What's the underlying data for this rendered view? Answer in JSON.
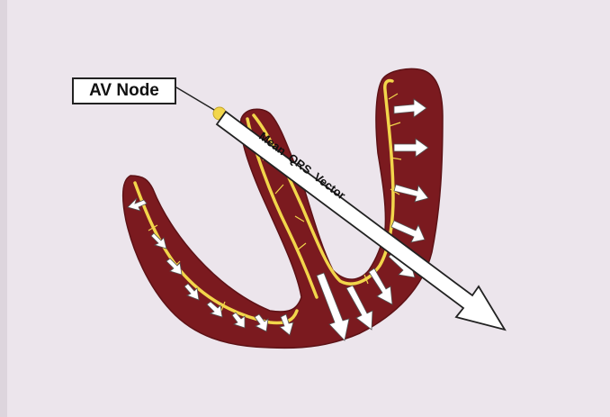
{
  "labels": {
    "av_node": "AV Node",
    "vector": "Mean  QRS  Vector"
  },
  "colors": {
    "background": "#ece5ec",
    "myocardium": "#7b1a1f",
    "conduction": "#f2d64b",
    "arrow": "#ffffff",
    "outline": "#222222"
  },
  "icons": {
    "av_node": "yellow-dot",
    "depolarization": "white-arrow"
  }
}
